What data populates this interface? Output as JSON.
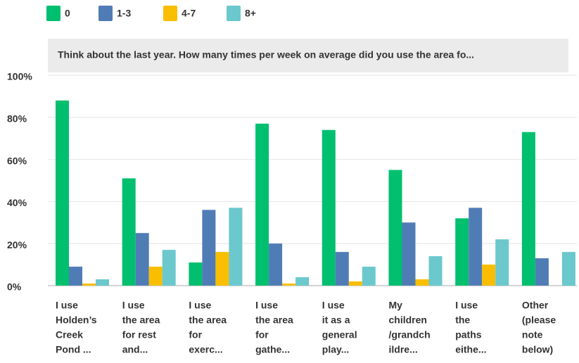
{
  "chart_data": {
    "type": "bar",
    "title": "Think about the last year. How many times per week on average did you use the area fo...",
    "categories": [
      [
        "I use",
        "Holden’s",
        "Creek",
        "Pond ..."
      ],
      [
        "I use",
        "the area",
        "for rest",
        "and..."
      ],
      [
        "I use",
        "the area",
        "for",
        "exerc..."
      ],
      [
        "I use",
        "the area",
        "for",
        "gathe..."
      ],
      [
        "I use",
        "it as a",
        "general",
        "play..."
      ],
      [
        "My",
        "children",
        "/grandch",
        "ildre..."
      ],
      [
        "I use",
        "the",
        "paths",
        "eithe..."
      ],
      [
        "Other",
        "(please",
        "note",
        "below)"
      ]
    ],
    "series": [
      {
        "name": "0",
        "color": "#00bf6f",
        "values": [
          88,
          51,
          11,
          77,
          74,
          55,
          32,
          73
        ]
      },
      {
        "name": "1-3",
        "color": "#507cb6",
        "values": [
          9,
          25,
          36,
          20,
          16,
          30,
          37,
          13
        ]
      },
      {
        "name": "4-7",
        "color": "#f9be00",
        "values": [
          1,
          9,
          16,
          1,
          2,
          3,
          10,
          0
        ]
      },
      {
        "name": "8+",
        "color": "#6bc8cd",
        "values": [
          3,
          17,
          37,
          4,
          9,
          14,
          22,
          16
        ]
      }
    ],
    "ylim": [
      0,
      100
    ],
    "yticks": [
      {
        "value": 0,
        "label": "0%"
      },
      {
        "value": 20,
        "label": "20%"
      },
      {
        "value": 40,
        "label": "40%"
      },
      {
        "value": 60,
        "label": "60%"
      },
      {
        "value": 80,
        "label": "80%"
      },
      {
        "value": 100,
        "label": "100%"
      }
    ],
    "grid": true
  }
}
